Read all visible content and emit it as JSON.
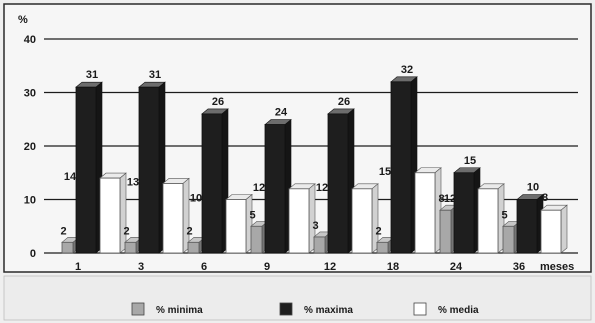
{
  "chart_data": {
    "type": "bar",
    "title": "",
    "ylabel": "%",
    "xlabel": "meses",
    "ylim": [
      0,
      40
    ],
    "yticks": [
      0,
      10,
      20,
      30,
      40
    ],
    "categories": [
      "1",
      "3",
      "6",
      "9",
      "12",
      "18",
      "24",
      "36"
    ],
    "series": [
      {
        "name": "% minima",
        "values": [
          2,
          2,
          2,
          5,
          3,
          2,
          8,
          5
        ],
        "color": "#a8a8a8"
      },
      {
        "name": "% maxima",
        "values": [
          31,
          31,
          26,
          24,
          26,
          32,
          15,
          10
        ],
        "color": "#1e1e1e"
      },
      {
        "name": "% media",
        "values": [
          14,
          13,
          10,
          12,
          12,
          15,
          12,
          8
        ],
        "color": "#ffffff"
      }
    ],
    "legend": "bottom",
    "grid": true
  }
}
